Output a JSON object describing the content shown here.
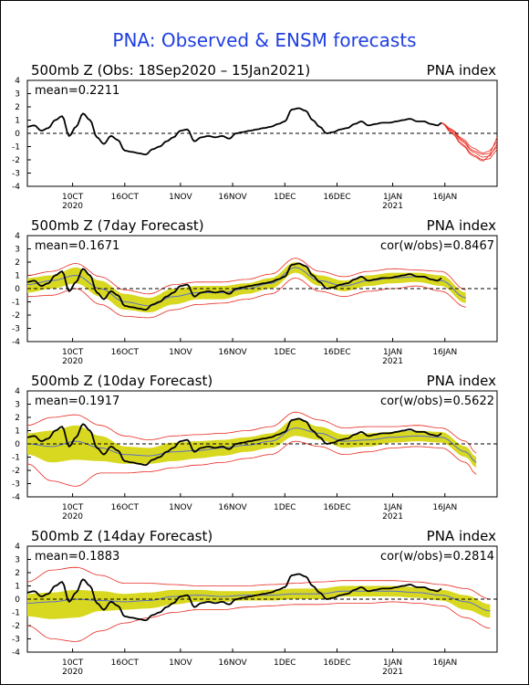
{
  "main_title": "PNA: Observed & ENSM forecasts",
  "panels": [
    {
      "title": "500mb Z (Obs: 18Sep2020 – 15Jan2021)",
      "index_label": "PNA index",
      "mean_label": "mean=0.2211",
      "cor_label": ""
    },
    {
      "title": "500mb Z (7day Forecast)",
      "index_label": "PNA index",
      "mean_label": "mean=0.1671",
      "cor_label": "cor(w/obs)=0.8467"
    },
    {
      "title": "500mb Z (10day Forecast)",
      "index_label": "PNA index",
      "mean_label": "mean=0.1917",
      "cor_label": "cor(w/obs)=0.5622"
    },
    {
      "title": "500mb Z (14day Forecast)",
      "index_label": "PNA index",
      "mean_label": "mean=0.1883",
      "cor_label": "cor(w/obs)=0.2814"
    }
  ],
  "colors": {
    "title": "#1f3fe0",
    "observed": "#000000",
    "spread_band": "#d8d820",
    "ensemble_members": "#e8281e",
    "ensemble_mean": "#5a6ec8"
  },
  "chart_data": {
    "type": "line",
    "ylim": [
      -4,
      4
    ],
    "yticks": [
      4,
      3,
      2,
      1,
      0,
      -1,
      -2,
      -3,
      -4
    ],
    "xlim": [
      "2020-09-18",
      "2021-01-31"
    ],
    "xticks": [
      {
        "date": "2020-10-01",
        "label": "10CT",
        "year": "2020"
      },
      {
        "date": "2020-10-16",
        "label": "16OCT",
        "year": ""
      },
      {
        "date": "2020-11-01",
        "label": "1NOV",
        "year": ""
      },
      {
        "date": "2020-11-16",
        "label": "16NOV",
        "year": ""
      },
      {
        "date": "2020-12-01",
        "label": "1DEC",
        "year": ""
      },
      {
        "date": "2020-12-16",
        "label": "16DEC",
        "year": ""
      },
      {
        "date": "2021-01-01",
        "label": "1JAN",
        "year": "2021"
      },
      {
        "date": "2021-01-16",
        "label": "16JAN",
        "year": ""
      }
    ],
    "observed": {
      "x": [
        "2020-09-18",
        "2020-09-20",
        "2020-09-22",
        "2020-09-24",
        "2020-09-26",
        "2020-09-28",
        "2020-09-30",
        "2020-10-02",
        "2020-10-04",
        "2020-10-06",
        "2020-10-08",
        "2020-10-10",
        "2020-10-12",
        "2020-10-14",
        "2020-10-16",
        "2020-10-18",
        "2020-10-20",
        "2020-10-22",
        "2020-10-24",
        "2020-10-26",
        "2020-10-28",
        "2020-10-30",
        "2020-11-01",
        "2020-11-03",
        "2020-11-05",
        "2020-11-07",
        "2020-11-09",
        "2020-11-11",
        "2020-11-13",
        "2020-11-15",
        "2020-11-17",
        "2020-11-19",
        "2020-11-21",
        "2020-11-23",
        "2020-11-25",
        "2020-11-27",
        "2020-11-29",
        "2020-12-01",
        "2020-12-03",
        "2020-12-05",
        "2020-12-07",
        "2020-12-09",
        "2020-12-11",
        "2020-12-13",
        "2020-12-15",
        "2020-12-17",
        "2020-12-19",
        "2020-12-21",
        "2020-12-23",
        "2020-12-25",
        "2020-12-27",
        "2020-12-29",
        "2020-12-31",
        "2021-01-02",
        "2021-01-04",
        "2021-01-06",
        "2021-01-08",
        "2021-01-10",
        "2021-01-12",
        "2021-01-14",
        "2021-01-15"
      ],
      "y": [
        0.5,
        0.6,
        0.2,
        0.4,
        1.0,
        1.3,
        -0.2,
        0.5,
        1.5,
        1.0,
        -0.3,
        -0.8,
        -0.2,
        -0.5,
        -1.3,
        -1.4,
        -1.5,
        -1.6,
        -1.2,
        -1.0,
        -0.6,
        -0.3,
        0.2,
        0.3,
        -0.6,
        -0.3,
        -0.2,
        -0.3,
        -0.2,
        -0.4,
        0.0,
        0.1,
        0.2,
        0.3,
        0.4,
        0.5,
        0.7,
        0.9,
        1.8,
        1.9,
        1.7,
        1.0,
        0.5,
        0.0,
        0.1,
        0.3,
        0.4,
        0.7,
        0.9,
        0.6,
        0.7,
        0.8,
        0.8,
        0.9,
        1.0,
        1.1,
        0.9,
        0.9,
        0.7,
        0.6,
        0.8
      ]
    },
    "observed_ensemble_forecast": {
      "x": [
        "2021-01-15",
        "2021-01-18",
        "2021-01-21",
        "2021-01-24",
        "2021-01-27",
        "2021-01-29",
        "2021-01-31"
      ],
      "members": [
        [
          0.8,
          0.3,
          -0.5,
          -1.3,
          -1.6,
          -1.5,
          -0.3
        ],
        [
          0.8,
          0.1,
          -0.8,
          -1.6,
          -2.0,
          -1.9,
          -1.2
        ],
        [
          0.8,
          0.2,
          -0.6,
          -1.4,
          -1.8,
          -1.7,
          -0.8
        ],
        [
          0.8,
          0.0,
          -0.9,
          -1.7,
          -2.1,
          -1.6,
          -1.0
        ],
        [
          0.8,
          0.3,
          -0.4,
          -1.1,
          -1.5,
          -1.3,
          -0.6
        ]
      ]
    },
    "forecasts": [
      {
        "lead": "7day",
        "x": [
          "2020-09-18",
          "2020-09-25",
          "2020-10-02",
          "2020-10-09",
          "2020-10-16",
          "2020-10-23",
          "2020-10-30",
          "2020-11-06",
          "2020-11-13",
          "2020-11-20",
          "2020-11-27",
          "2020-12-04",
          "2020-12-11",
          "2020-12-18",
          "2020-12-25",
          "2021-01-01",
          "2021-01-08",
          "2021-01-15",
          "2021-01-22"
        ],
        "ensemble_mean": [
          0.3,
          0.6,
          1.0,
          0.0,
          -1.0,
          -1.3,
          -0.6,
          -0.3,
          -0.3,
          0.0,
          0.4,
          1.6,
          0.6,
          0.2,
          0.6,
          0.8,
          0.9,
          0.6,
          -0.7
        ],
        "band_upper": [
          0.8,
          1.0,
          1.6,
          0.6,
          -0.4,
          -0.7,
          0.0,
          0.2,
          0.2,
          0.4,
          0.8,
          2.0,
          1.0,
          0.6,
          1.0,
          1.2,
          1.2,
          1.0,
          -0.3
        ],
        "band_lower": [
          -0.3,
          0.0,
          0.4,
          -0.6,
          -1.6,
          -1.8,
          -1.2,
          -0.8,
          -0.8,
          -0.4,
          0.0,
          1.2,
          0.2,
          -0.2,
          0.2,
          0.4,
          0.5,
          0.2,
          -1.1
        ],
        "member_max": [
          1.0,
          1.3,
          1.9,
          0.9,
          -0.1,
          -0.4,
          0.3,
          0.5,
          0.5,
          0.7,
          1.1,
          2.3,
          1.3,
          0.9,
          1.3,
          1.5,
          1.4,
          1.3,
          -0.1
        ],
        "member_min": [
          -0.6,
          -0.5,
          0.0,
          -1.2,
          -2.1,
          -2.2,
          -1.6,
          -1.2,
          -1.1,
          -0.8,
          -0.4,
          0.8,
          -0.2,
          -0.6,
          -0.2,
          0.0,
          0.2,
          -0.2,
          -1.4
        ]
      },
      {
        "lead": "10day",
        "x": [
          "2020-09-18",
          "2020-09-25",
          "2020-10-02",
          "2020-10-09",
          "2020-10-16",
          "2020-10-23",
          "2020-10-30",
          "2020-11-06",
          "2020-11-13",
          "2020-11-20",
          "2020-11-27",
          "2020-12-04",
          "2020-12-11",
          "2020-12-18",
          "2020-12-25",
          "2021-01-01",
          "2021-01-08",
          "2021-01-15",
          "2021-01-22",
          "2021-01-25"
        ],
        "ensemble_mean": [
          0.0,
          -0.2,
          0.2,
          -0.3,
          -0.8,
          -0.9,
          -0.6,
          -0.5,
          -0.3,
          -0.1,
          0.2,
          1.2,
          0.8,
          0.2,
          0.3,
          0.5,
          0.6,
          0.5,
          -0.6,
          -1.4
        ],
        "band_upper": [
          0.8,
          1.0,
          1.4,
          0.6,
          -0.2,
          -0.3,
          0.1,
          0.2,
          0.3,
          0.5,
          0.8,
          1.9,
          1.3,
          0.7,
          0.8,
          0.9,
          1.0,
          0.9,
          -0.2,
          -1.0
        ],
        "band_lower": [
          -0.8,
          -1.4,
          -1.2,
          -1.3,
          -1.5,
          -1.5,
          -1.3,
          -1.1,
          -0.9,
          -0.6,
          -0.3,
          0.6,
          0.3,
          -0.3,
          -0.2,
          0.1,
          0.2,
          0.1,
          -1.0,
          -1.8
        ],
        "member_max": [
          1.4,
          2.0,
          2.2,
          1.4,
          0.6,
          0.3,
          0.6,
          0.7,
          0.8,
          1.0,
          1.3,
          2.4,
          1.8,
          1.2,
          1.3,
          1.3,
          1.4,
          1.2,
          0.2,
          -0.7
        ],
        "member_min": [
          -1.5,
          -2.8,
          -3.2,
          -2.2,
          -2.2,
          -2.1,
          -1.8,
          -1.6,
          -1.4,
          -1.1,
          -0.8,
          0.2,
          -0.2,
          -0.8,
          -0.6,
          -0.3,
          -0.2,
          -0.3,
          -1.4,
          -2.3
        ]
      },
      {
        "lead": "14day",
        "x": [
          "2020-09-18",
          "2020-09-25",
          "2020-10-02",
          "2020-10-09",
          "2020-10-16",
          "2020-10-23",
          "2020-10-30",
          "2020-11-06",
          "2020-11-13",
          "2020-11-20",
          "2020-11-27",
          "2020-12-04",
          "2020-12-11",
          "2020-12-18",
          "2020-12-25",
          "2021-01-01",
          "2021-01-08",
          "2021-01-15",
          "2021-01-22",
          "2021-01-29"
        ],
        "ensemble_mean": [
          -0.3,
          -0.2,
          0.0,
          -0.1,
          -0.2,
          -0.1,
          0.2,
          0.3,
          0.2,
          0.3,
          0.3,
          0.4,
          0.4,
          0.6,
          0.6,
          0.6,
          0.5,
          0.3,
          -0.2,
          -0.9
        ],
        "band_upper": [
          0.4,
          0.5,
          0.7,
          0.6,
          0.4,
          0.5,
          0.7,
          0.7,
          0.6,
          0.6,
          0.7,
          0.8,
          0.8,
          1.0,
          1.0,
          1.0,
          0.9,
          0.7,
          0.3,
          -0.4
        ],
        "band_lower": [
          -1.3,
          -1.5,
          -1.4,
          -0.9,
          -0.8,
          -0.7,
          -0.4,
          -0.2,
          -0.2,
          -0.1,
          -0.1,
          0.0,
          0.0,
          0.2,
          0.2,
          0.2,
          0.1,
          -0.1,
          -0.8,
          -1.4
        ],
        "member_max": [
          1.3,
          2.2,
          2.4,
          1.8,
          1.2,
          1.2,
          1.1,
          1.0,
          1.0,
          1.0,
          1.1,
          1.2,
          1.3,
          1.4,
          1.4,
          1.4,
          1.3,
          1.1,
          0.8,
          0.0
        ],
        "member_min": [
          -2.0,
          -3.0,
          -3.2,
          -2.4,
          -1.8,
          -1.4,
          -1.0,
          -0.8,
          -0.8,
          -0.6,
          -0.5,
          -0.4,
          -0.4,
          -0.3,
          -0.3,
          -0.2,
          -0.3,
          -0.5,
          -1.4,
          -2.2
        ]
      }
    ]
  }
}
